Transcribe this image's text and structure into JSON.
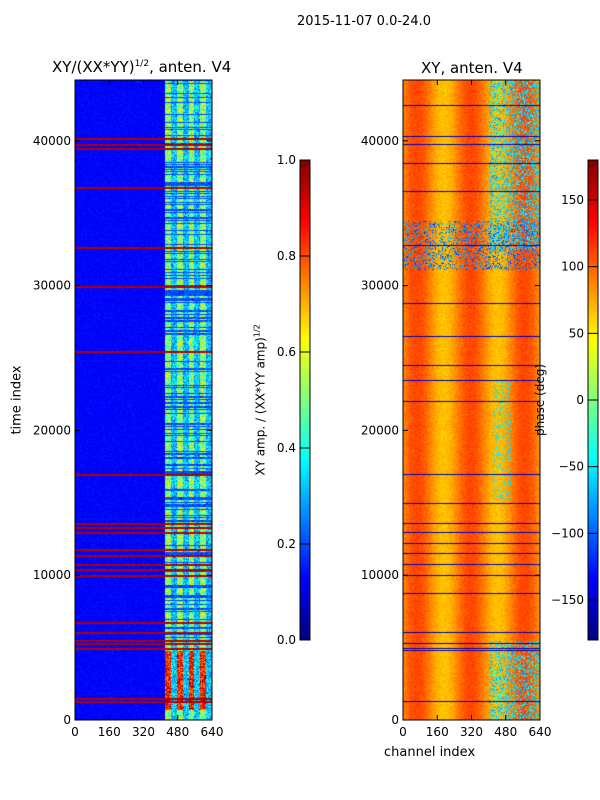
{
  "suptitle": "2015-11-07 0.0-24.0",
  "chart_data": [
    {
      "type": "heatmap",
      "title": "XY/(XX*YY)^1/2, anten. V4",
      "title_main": "XY/(XX*YY)",
      "title_sup": "1/2",
      "title_tail": ", anten. V4",
      "xlabel": "",
      "ylabel": "time index",
      "xlim": [
        0,
        640
      ],
      "ylim": [
        0,
        44200
      ],
      "xticks": [
        0,
        160,
        320,
        480,
        640
      ],
      "yticks": [
        0,
        10000,
        20000,
        30000,
        40000
      ],
      "colormap": "jet",
      "clim": [
        0,
        1
      ],
      "colorbar": {
        "label_main": "XY amp. / (XX*YY amp)",
        "label_sup": "1/2",
        "ticks": [
          "0.0",
          "0.2",
          "0.4",
          "0.6",
          "0.8",
          "1.0"
        ],
        "tick_values": [
          0,
          0.2,
          0.4,
          0.6,
          0.8,
          1.0
        ]
      },
      "description_values": {
        "background_level": 0.1,
        "high_channel_band": [
          420,
          640
        ],
        "high_channel_level": 0.5,
        "saturated_rows": [
          1300,
          1500,
          5000,
          5300,
          5500,
          6100,
          6800,
          10000,
          10400,
          10800,
          11400,
          11800,
          13000,
          13300,
          13600,
          17000,
          25500,
          30000,
          32700,
          36800,
          39500,
          39800,
          40200
        ]
      }
    },
    {
      "type": "heatmap",
      "title": "XY, anten. V4",
      "xlabel": "channel index",
      "ylabel": "",
      "xlim": [
        0,
        640
      ],
      "ylim": [
        0,
        44200
      ],
      "xticks": [
        0,
        160,
        320,
        480,
        640
      ],
      "yticks": [
        0,
        10000,
        20000,
        30000,
        40000
      ],
      "colormap": "jet",
      "clim": [
        -180,
        180
      ],
      "colorbar": {
        "label": "phase (deg)",
        "ticks": [
          "150",
          "100",
          "50",
          "0",
          "−50",
          "−100",
          "−150"
        ],
        "tick_values": [
          150,
          100,
          50,
          0,
          -50,
          -100,
          -150
        ]
      },
      "description_values": {
        "background_phase": 80,
        "flagged_rows": [
          1300,
          4800,
          5000,
          5300,
          6100,
          8800,
          10000,
          10800,
          11500,
          12200,
          13000,
          13600,
          15000,
          17000,
          22000,
          23500,
          24500,
          26500,
          28800,
          32800,
          36500,
          38500,
          39800,
          40300,
          42500
        ]
      }
    }
  ]
}
